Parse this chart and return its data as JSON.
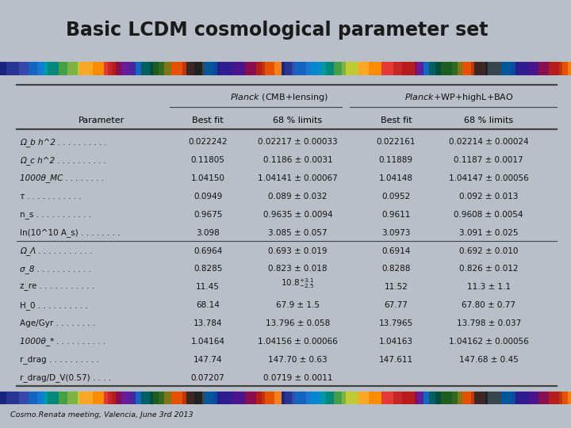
{
  "title": "Basic LCDM cosmological parameter set",
  "subtitle": "Cosmo.Renata meeting, Valencia, June 3rd 2013",
  "background_color": "#b8bfc8",
  "table_background": "#f2f2f2",
  "header1_italic": "Planck",
  "header1_rest": " (CMB+lensing)",
  "header2_italic": "Planck",
  "header2_rest": "+WP+highL+BAO",
  "col_headers": [
    "Parameter",
    "Best fit",
    "68 % limits",
    "Best fit",
    "68 % limits"
  ],
  "rows": [
    [
      "Ω_b h^2 . . . . . . . . . .",
      "0.022242",
      "0.02217 ± 0.00033",
      "0.022161",
      "0.02214 ± 0.00024"
    ],
    [
      "Ω_c h^2 . . . . . . . . . .",
      "0.11805",
      "0.1186 ± 0.0031",
      "0.11889",
      "0.1187 ± 0.0017"
    ],
    [
      "1000θ_MC . . . . . . . .",
      "1.04150",
      "1.04141 ± 0.00067",
      "1.04148",
      "1.04147 ± 0.00056"
    ],
    [
      "τ . . . . . . . . . . .",
      "0.0949",
      "0.089 ± 0.032",
      "0.0952",
      "0.092 ± 0.013"
    ],
    [
      "n_s . . . . . . . . . . .",
      "0.9675",
      "0.9635 ± 0.0094",
      "0.9611",
      "0.9608 ± 0.0054"
    ],
    [
      "ln(10^10 A_s) . . . . . . . .",
      "3.098",
      "3.085 ± 0.057",
      "3.0973",
      "3.091 ± 0.025"
    ],
    [
      "Ω_Λ . . . . . . . . . . .",
      "0.6964",
      "0.693 ± 0.019",
      "0.6914",
      "0.692 ± 0.010"
    ],
    [
      "σ_8 . . . . . . . . . . .",
      "0.8285",
      "0.823 ± 0.018",
      "0.8288",
      "0.826 ± 0.012"
    ],
    [
      "z_re . . . . . . . . . . .",
      "11.45",
      "10.8+3.1-2.5",
      "11.52",
      "11.3 ± 1.1"
    ],
    [
      "H_0 . . . . . . . . . .",
      "68.14",
      "67.9 ± 1.5",
      "67.77",
      "67.80 ± 0.77"
    ],
    [
      "Age/Gyr . . . . . . . .",
      "13.784",
      "13.796 ± 0.058",
      "13.7965",
      "13.798 ± 0.037"
    ],
    [
      "1000θ_* . . . . . . . . . .",
      "1.04164",
      "1.04156 ± 0.00066",
      "1.04163",
      "1.04162 ± 0.00056"
    ],
    [
      "r_drag . . . . . . . . . .",
      "147.74",
      "147.70 ± 0.63",
      "147.611",
      "147.68 ± 0.45"
    ],
    [
      "r_drag/D_V(0.57) . . . .",
      "0.07207",
      "0.0719 ± 0.0011",
      "",
      ""
    ]
  ],
  "separator_row": 5,
  "bar_seed": 42,
  "bar_n": 80,
  "bar_colors_cycle": [
    "#00008B",
    "#0000CD",
    "#0000FF",
    "#1E90FF",
    "#00BFFF",
    "#00CED1",
    "#20B2AA",
    "#3CB371",
    "#7CFC00",
    "#ADFF2F",
    "#FFFF00",
    "#FFD700",
    "#FFA500",
    "#FF8C00",
    "#FF4500",
    "#FF0000",
    "#DC143C",
    "#B22222",
    "#8B0000",
    "#800000",
    "#006400",
    "#008000",
    "#228B22",
    "#2E8B57",
    "#008B8B",
    "#008080",
    "#4169E1",
    "#6495ED",
    "#87CEEB",
    "#ADD8E6",
    "#B0C4DE",
    "#708090"
  ]
}
